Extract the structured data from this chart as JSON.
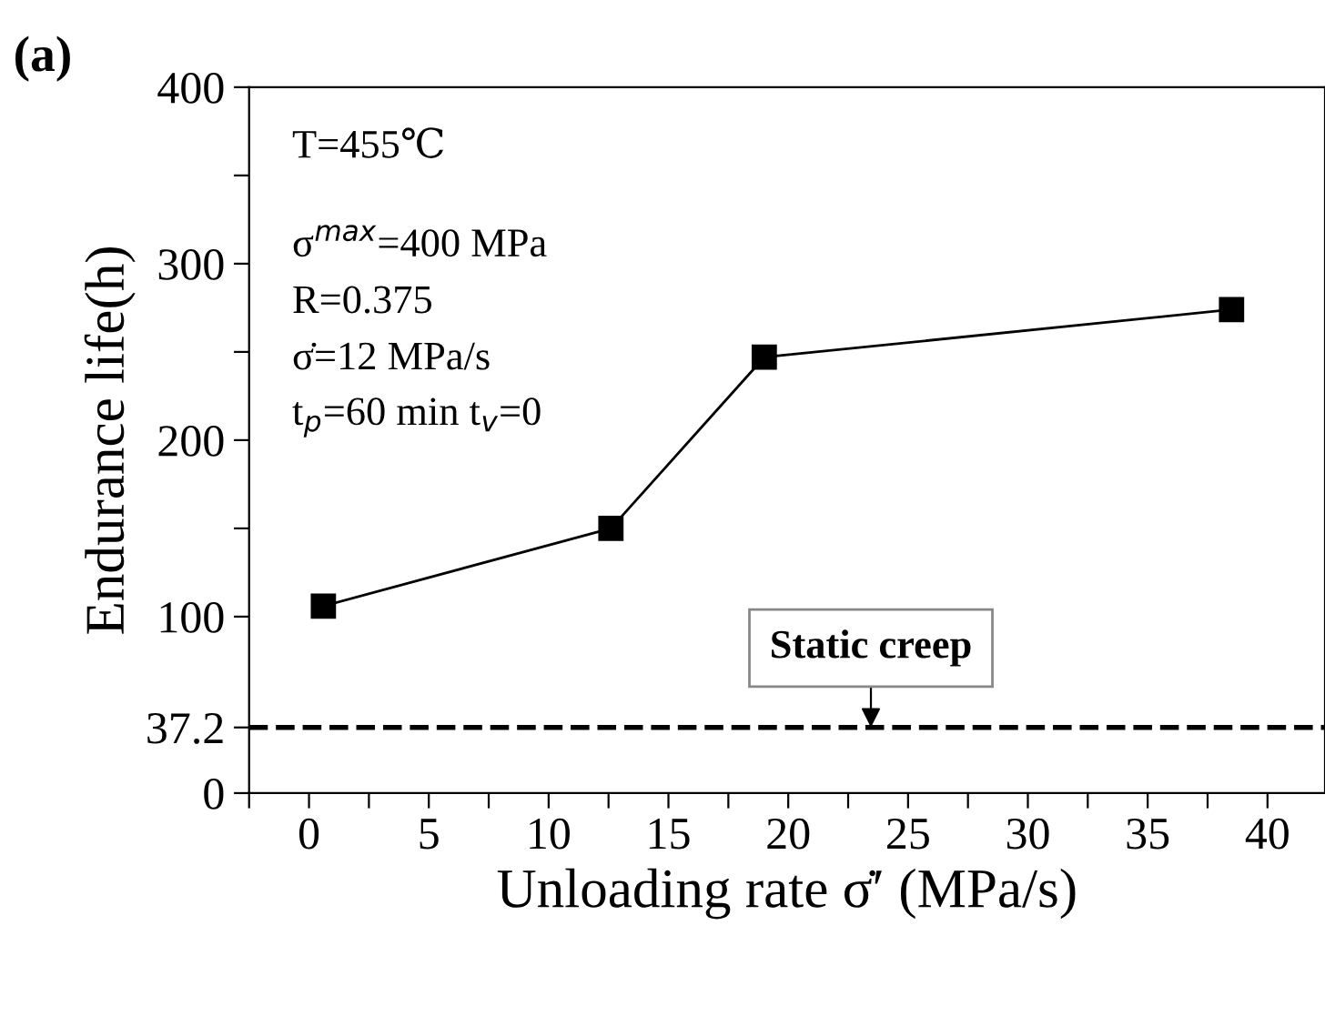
{
  "chart_data": {
    "type": "line",
    "title": "(a)",
    "xlabel": "Unloading rate σ̇′ (MPa/s)",
    "ylabel": "Endurance life(h)",
    "x": [
      0.6,
      12.6,
      19,
      38.5
    ],
    "series": [
      {
        "color": "#000000",
        "values": [
          106,
          150,
          247,
          274
        ]
      }
    ],
    "marker": "square",
    "line_style": "solid",
    "grid": false,
    "xlim": [
      -2.5,
      42.4
    ],
    "xticks": [
      0,
      5,
      10,
      15,
      20,
      25,
      30,
      35,
      40,
      {
        "value": -2.5,
        "label": null
      },
      {
        "value": 2.5,
        "label": null
      },
      {
        "value": 7.5,
        "label": null
      },
      {
        "value": 12.5,
        "label": null
      },
      {
        "value": 17.5,
        "label": null
      },
      {
        "value": 22.5,
        "label": null
      },
      {
        "value": 27.5,
        "label": null
      },
      {
        "value": 32.5,
        "label": null
      },
      {
        "value": 37.5,
        "label": null
      }
    ],
    "ylim": [
      0,
      400
    ],
    "yticks": [
      0,
      37.2,
      100,
      200,
      300,
      400,
      {
        "value": 150,
        "label": null
      },
      {
        "value": 250,
        "label": null
      },
      {
        "value": 350,
        "label": null
      }
    ],
    "ref_lines": [
      {
        "axis": "y",
        "value": 37.2,
        "label": "Static creep",
        "color": "#000000",
        "line_style": "dashed"
      }
    ],
    "annotations": [
      "T=455℃",
      "σ$^{max}$=400 MPa",
      "R=0.375",
      "σ̇=12 MPa/s",
      "t$_{p}$=60 min t$_{v}$=0"
    ]
  }
}
